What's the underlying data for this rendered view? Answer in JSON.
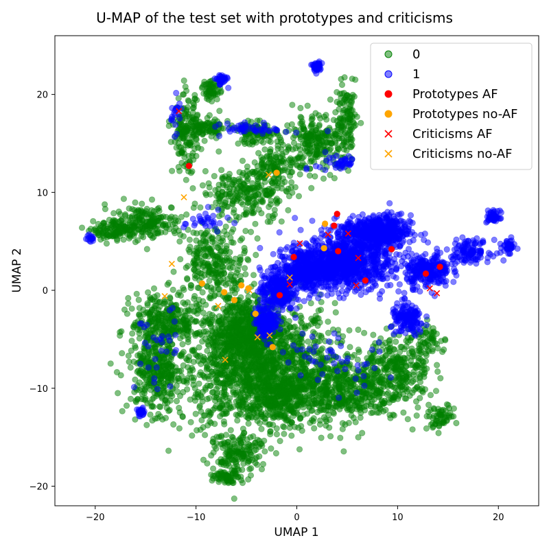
{
  "chart_data": {
    "type": "scatter",
    "title": "U-MAP of the test set with prototypes and criticisms",
    "xlabel": "UMAP 1",
    "ylabel": "UMAP 2",
    "xlim": [
      -24,
      24
    ],
    "ylim": [
      -22,
      26
    ],
    "xticks": [
      -20,
      -10,
      0,
      10,
      20
    ],
    "yticks": [
      -20,
      -10,
      0,
      10,
      20
    ],
    "xtick_labels": [
      "−20",
      "−10",
      "0",
      "10",
      "20"
    ],
    "ytick_labels": [
      "−20",
      "−10",
      "0",
      "10",
      "20"
    ],
    "grid": false,
    "legend_position": "top-right",
    "series": [
      {
        "name": "0",
        "marker": "circle",
        "color": "#008000",
        "alpha": 0.5,
        "clusters": [
          {
            "center": [
              -4,
              -8
            ],
            "spread": [
              7,
              6
            ],
            "count": 1500
          },
          {
            "center": [
              -5,
              -4
            ],
            "spread": [
              3.5,
              3
            ],
            "count": 500
          },
          {
            "center": [
              4,
              -10
            ],
            "spread": [
              6,
              3
            ],
            "count": 600
          },
          {
            "center": [
              10,
              -8
            ],
            "spread": [
              3,
              3
            ],
            "count": 250
          },
          {
            "center": [
              -14,
              -8
            ],
            "spread": [
              2.5,
              4
            ],
            "count": 350
          },
          {
            "center": [
              -13,
              -3
            ],
            "spread": [
              3,
              2.5
            ],
            "count": 250
          },
          {
            "center": [
              -6,
              -17
            ],
            "spread": [
              2,
              2
            ],
            "count": 150
          },
          {
            "center": [
              -8,
              3
            ],
            "spread": [
              3,
              3
            ],
            "count": 250
          },
          {
            "center": [
              -5,
              10
            ],
            "spread": [
              4,
              2.5
            ],
            "count": 250
          },
          {
            "center": [
              2,
              15
            ],
            "spread": [
              3,
              2.5
            ],
            "count": 250
          },
          {
            "center": [
              -15,
              7
            ],
            "spread": [
              3.5,
              1.5
            ],
            "count": 200
          },
          {
            "center": [
              -18,
              6
            ],
            "spread": [
              2,
              0.8
            ],
            "count": 100
          },
          {
            "center": [
              -11,
              16
            ],
            "spread": [
              1.2,
              3.5
            ],
            "count": 150
          },
          {
            "center": [
              -9,
              16.5
            ],
            "spread": [
              2,
              1
            ],
            "count": 100
          },
          {
            "center": [
              -4,
              16
            ],
            "spread": [
              2,
              1
            ],
            "count": 100
          },
          {
            "center": [
              -8.5,
              20.5
            ],
            "spread": [
              0.8,
              1
            ],
            "count": 60
          },
          {
            "center": [
              -2,
              13
            ],
            "spread": [
              2,
              1.5
            ],
            "count": 100
          },
          {
            "center": [
              5,
              17.5
            ],
            "spread": [
              1,
              3
            ],
            "count": 100
          },
          {
            "center": [
              13,
              -5
            ],
            "spread": [
              1.5,
              1.5
            ],
            "count": 60
          },
          {
            "center": [
              14,
              -13
            ],
            "spread": [
              1.5,
              1
            ],
            "count": 60
          },
          {
            "center": [
              -7,
              -19
            ],
            "spread": [
              1,
              0.6
            ],
            "count": 60
          },
          {
            "center": [
              -2,
              -11
            ],
            "spread": [
              2,
              2
            ],
            "count": 150
          }
        ]
      },
      {
        "name": "1",
        "marker": "circle",
        "color": "#0000ff",
        "alpha": 0.5,
        "clusters": [
          {
            "center": [
              5,
              3
            ],
            "spread": [
              4,
              2.5
            ],
            "count": 900
          },
          {
            "center": [
              8,
              6
            ],
            "spread": [
              3,
              1.5
            ],
            "count": 500
          },
          {
            "center": [
              1,
              2
            ],
            "spread": [
              2.5,
              2
            ],
            "count": 400
          },
          {
            "center": [
              -2,
              0
            ],
            "spread": [
              1.5,
              2
            ],
            "count": 250
          },
          {
            "center": [
              -3,
              -3
            ],
            "spread": [
              1,
              1.5
            ],
            "count": 150
          },
          {
            "center": [
              13,
              2
            ],
            "spread": [
              2,
              1.5
            ],
            "count": 250
          },
          {
            "center": [
              11,
              -3
            ],
            "spread": [
              1.5,
              1.5
            ],
            "count": 150
          },
          {
            "center": [
              17,
              4
            ],
            "spread": [
              2,
              1
            ],
            "count": 120
          },
          {
            "center": [
              19.5,
              7.5
            ],
            "spread": [
              0.6,
              0.6
            ],
            "count": 50
          },
          {
            "center": [
              21,
              4.5
            ],
            "spread": [
              0.6,
              0.6
            ],
            "count": 40
          },
          {
            "center": [
              2,
              22.8
            ],
            "spread": [
              0.5,
              0.5
            ],
            "count": 40
          },
          {
            "center": [
              -7.5,
              21.5
            ],
            "spread": [
              0.5,
              0.5
            ],
            "count": 40
          },
          {
            "center": [
              -15.5,
              -12.5
            ],
            "spread": [
              0.4,
              0.4
            ],
            "count": 25
          },
          {
            "center": [
              -20.5,
              5.3
            ],
            "spread": [
              0.4,
              0.4
            ],
            "count": 15
          },
          {
            "center": [
              -4,
              16.5
            ],
            "spread": [
              3,
              0.5
            ],
            "count": 50
          },
          {
            "center": [
              4,
              13
            ],
            "spread": [
              2,
              1
            ],
            "count": 40
          },
          {
            "center": [
              -12,
              18
            ],
            "spread": [
              0.5,
              1.5
            ],
            "count": 20
          },
          {
            "center": [
              -9,
              7
            ],
            "spread": [
              2,
              1
            ],
            "count": 30
          },
          {
            "center": [
              3,
              -7
            ],
            "spread": [
              5,
              3
            ],
            "count": 50
          },
          {
            "center": [
              -14,
              -6
            ],
            "spread": [
              2,
              4
            ],
            "count": 30
          }
        ]
      },
      {
        "name": "Prototypes AF",
        "marker": "circle",
        "color": "#ff0000",
        "points": [
          [
            -10.7,
            12.7
          ],
          [
            4,
            7.8
          ],
          [
            3.7,
            6.6
          ],
          [
            -0.3,
            3.4
          ],
          [
            4.1,
            4
          ],
          [
            9.4,
            4.2
          ],
          [
            6.8,
            1
          ],
          [
            -1.7,
            -0.5
          ],
          [
            12.8,
            1.7
          ],
          [
            14.2,
            2.4
          ]
        ]
      },
      {
        "name": "Prototypes no-AF",
        "marker": "circle",
        "color": "#ffa500",
        "points": [
          [
            -2,
            12
          ],
          [
            2.8,
            6.8
          ],
          [
            2.7,
            4.3
          ],
          [
            -9.4,
            0.7
          ],
          [
            -5.5,
            0.5
          ],
          [
            -4.8,
            0.2
          ],
          [
            -7.2,
            -0.2
          ],
          [
            -6.2,
            -1
          ],
          [
            -4.1,
            -2.4
          ],
          [
            -2.4,
            -5.8
          ]
        ]
      },
      {
        "name": "Criticisms AF",
        "marker": "x",
        "color": "#ff0000",
        "points": [
          [
            -11.7,
            18.3
          ],
          [
            0.3,
            4.8
          ],
          [
            3.1,
            5.7
          ],
          [
            5.1,
            5.8
          ],
          [
            6.1,
            3.3
          ],
          [
            -0.7,
            0.6
          ],
          [
            5.9,
            0.5
          ],
          [
            13.2,
            0.2
          ],
          [
            13.9,
            -0.3
          ]
        ]
      },
      {
        "name": "Criticisms no-AF",
        "marker": "x",
        "color": "#ffa500",
        "points": [
          [
            -2.8,
            11.8
          ],
          [
            -11.2,
            9.5
          ],
          [
            -12.4,
            2.7
          ],
          [
            -13.1,
            -0.6
          ],
          [
            -0.7,
            1.3
          ],
          [
            -4.7,
            0.0
          ],
          [
            -7.8,
            -1.6
          ],
          [
            -3.9,
            -4.8
          ],
          [
            -2.7,
            -4.6
          ],
          [
            -7.1,
            -7.1
          ]
        ]
      }
    ]
  }
}
